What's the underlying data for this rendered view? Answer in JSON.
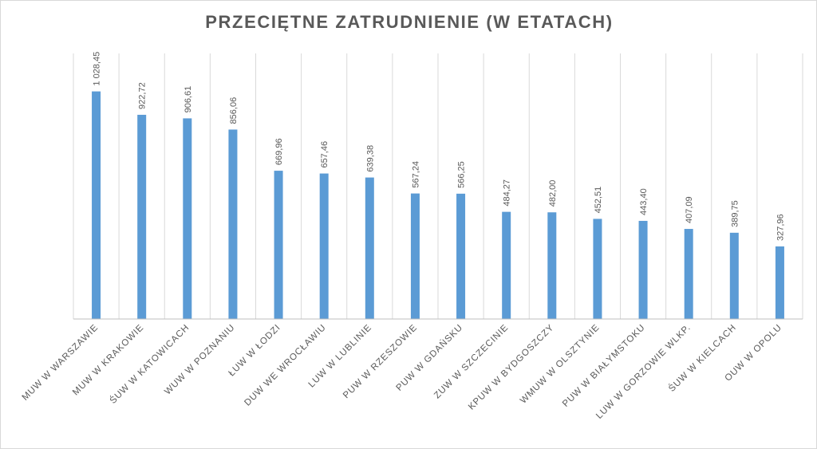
{
  "chart_data": {
    "type": "bar",
    "title": "PRZECIĘTNE ZATRUDNIENIE (W ETATACH)",
    "xlabel": "",
    "ylabel": "",
    "categories": [
      "MUW W WARSZAWIE",
      "MUW W KRAKOWIE",
      "ŚUW W KATOWICACH",
      "WUW W POZNANIU",
      "ŁUW W ŁODZI",
      "DUW WE WROCŁAWIU",
      "LUW W LUBLINIE",
      "PUW W RZESZOWIE",
      "PUW W GDAŃSKU",
      "ZUW W SZCZECINIE",
      "KPUW W BYDGOSZCZY",
      "WMUW W OLSZTYNIE",
      "PUW W BIAŁYMSTOKU",
      "LUW W GORZOWIE WLKP.",
      "ŚUW W KIELCACH",
      "OUW W OPOLU"
    ],
    "values": [
      1028.45,
      922.72,
      906.61,
      856.06,
      669.96,
      657.46,
      639.38,
      567.24,
      566.25,
      484.27,
      482.0,
      452.51,
      443.4,
      407.09,
      389.75,
      327.96
    ],
    "value_labels": [
      "1 028,45",
      "922,72",
      "906,61",
      "856,06",
      "669,96",
      "657,46",
      "639,38",
      "567,24",
      "566,25",
      "484,27",
      "482,00",
      "452,51",
      "443,40",
      "407,09",
      "389,75",
      "327,96"
    ],
    "ylim": [
      0,
      1200
    ],
    "grid": "vertical",
    "legend": "none",
    "colors": {
      "bar": "#5b9bd5",
      "grid": "#d9d9d9",
      "axis": "#bfbfbf",
      "text": "#595959"
    }
  }
}
